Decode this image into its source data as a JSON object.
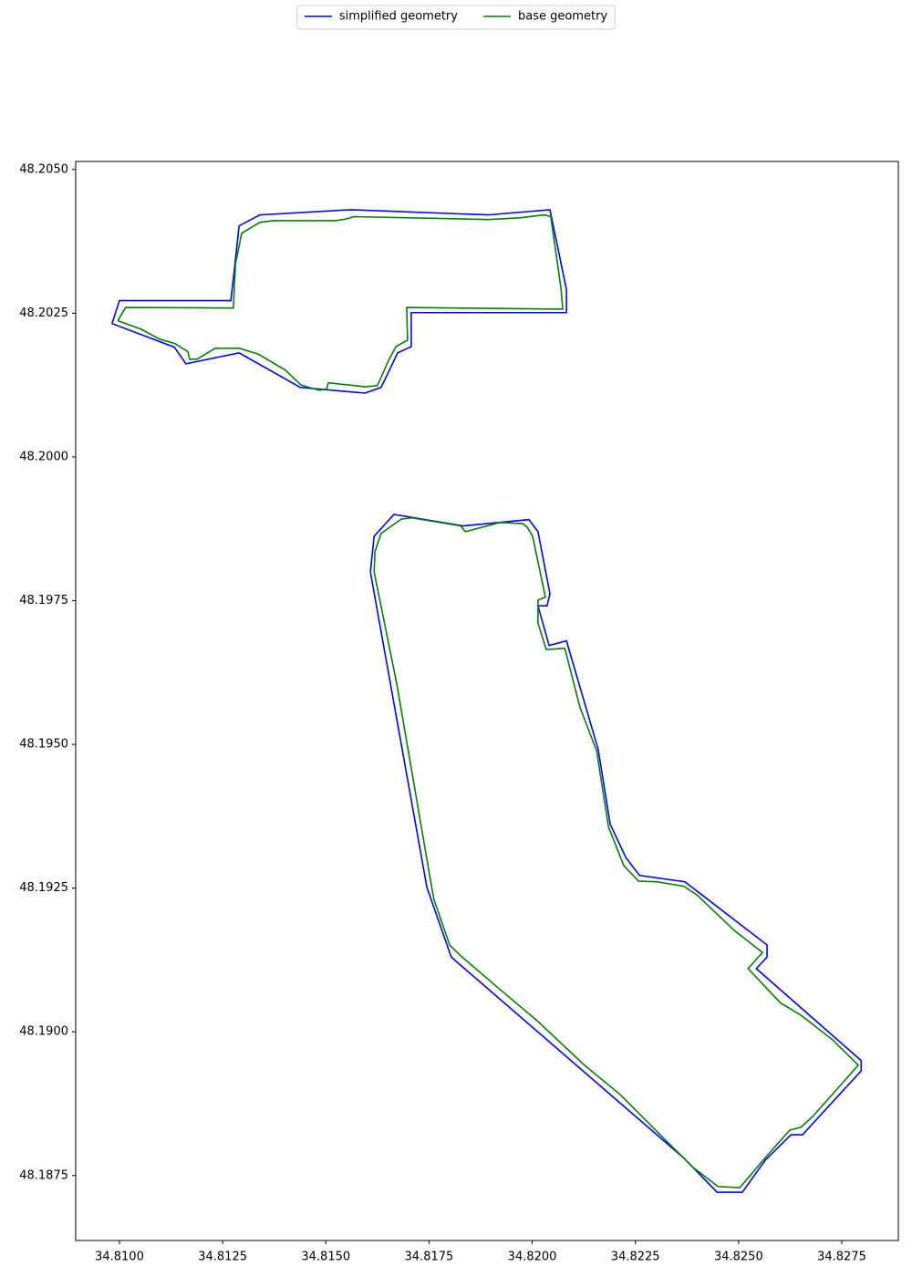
{
  "chart_data": {
    "type": "line",
    "xlim": [
      34.80894,
      34.82887
    ],
    "ylim": [
      48.18637,
      48.20514
    ],
    "xticks": [
      {
        "value": 34.81,
        "label": "34.8100"
      },
      {
        "value": 34.8125,
        "label": "34.8125"
      },
      {
        "value": 34.815,
        "label": "34.8150"
      },
      {
        "value": 34.8175,
        "label": "34.8175"
      },
      {
        "value": 34.82,
        "label": "34.8200"
      },
      {
        "value": 34.8225,
        "label": "34.8225"
      },
      {
        "value": 34.825,
        "label": "34.8250"
      },
      {
        "value": 34.8275,
        "label": "34.8275"
      }
    ],
    "yticks": [
      {
        "value": 48.1875,
        "label": "48.1875"
      },
      {
        "value": 48.19,
        "label": "48.1900"
      },
      {
        "value": 48.1925,
        "label": "48.1925"
      },
      {
        "value": 48.195,
        "label": "48.1950"
      },
      {
        "value": 48.1975,
        "label": "48.1975"
      },
      {
        "value": 48.2,
        "label": "48.2000"
      },
      {
        "value": 48.2025,
        "label": "48.2025"
      },
      {
        "value": 48.205,
        "label": "48.2050"
      }
    ],
    "grid": false,
    "legend": "upper center",
    "series": [
      {
        "name": "simplified geometry",
        "color": "#0000ff",
        "x": [
          34.80982,
          34.81,
          34.8127,
          34.8129,
          34.8134,
          34.81561,
          34.81893,
          34.82043,
          34.82083,
          34.82083,
          34.81707,
          34.81707,
          34.81674,
          34.81634,
          34.81595,
          34.81484,
          34.81438,
          34.8129,
          34.81161,
          34.81133,
          34.80982,
          null,
          34.81608,
          34.81617,
          34.81665,
          34.81833,
          34.81992,
          34.82014,
          34.82043,
          34.82036,
          34.82014,
          34.82041,
          34.82083,
          34.8216,
          34.82189,
          34.82227,
          34.8226,
          34.8237,
          34.82569,
          34.82569,
          34.82543,
          34.82797,
          34.82797,
          34.82655,
          34.82627,
          34.82565,
          34.82509,
          34.82448,
          34.82368,
          34.81804,
          34.81745,
          34.81608
        ],
        "values": [
          48.20232,
          48.20272,
          48.20272,
          48.20402,
          48.20421,
          48.2043,
          48.20421,
          48.2043,
          48.20291,
          48.20251,
          48.20251,
          48.20192,
          48.20181,
          48.20121,
          48.20111,
          48.20118,
          48.20121,
          48.20181,
          48.20162,
          48.20191,
          48.20232,
          null,
          48.198,
          48.19862,
          48.199,
          48.1988,
          48.19891,
          48.1987,
          48.19762,
          48.19741,
          48.19741,
          48.19672,
          48.1968,
          48.19491,
          48.19361,
          48.19303,
          48.19272,
          48.19261,
          48.19151,
          48.1913,
          48.1911,
          48.1895,
          48.18932,
          48.18821,
          48.18821,
          48.18777,
          48.18721,
          48.18721,
          48.1878,
          48.1913,
          48.19251,
          48.198
        ]
      },
      {
        "name": "base geometry",
        "color": "#008000",
        "x": [
          34.80996,
          34.81015,
          34.81276,
          34.81281,
          34.81296,
          34.8134,
          34.81373,
          34.81524,
          34.8155,
          34.81568,
          34.81893,
          34.8197,
          34.8203,
          34.82045,
          34.8207,
          34.82074,
          34.81696,
          34.81698,
          34.8167,
          34.81652,
          34.81625,
          34.81595,
          34.81506,
          34.81502,
          34.81484,
          34.8144,
          34.81402,
          34.81336,
          34.8129,
          34.81232,
          34.81188,
          34.8117,
          34.81166,
          34.81135,
          34.81097,
          34.81053,
          34.80996,
          null,
          34.81617,
          34.81619,
          34.81634,
          34.81683,
          34.81709,
          34.81827,
          34.81838,
          34.81922,
          34.81977,
          34.81988,
          34.82001,
          34.82032,
          34.82014,
          34.82014,
          34.82034,
          34.82079,
          34.82116,
          34.82156,
          34.82185,
          34.82222,
          34.82258,
          34.82302,
          34.82368,
          34.82401,
          34.8249,
          34.82558,
          34.82523,
          34.82602,
          34.82651,
          34.82728,
          34.8279,
          34.8268,
          34.82651,
          34.82624,
          34.82567,
          34.82503,
          34.8245,
          34.8239,
          34.82324,
          34.82213,
          34.82125,
          34.82014,
          34.81915,
          34.81827,
          34.818,
          34.81762,
          34.81754,
          34.81672,
          34.81617
        ],
        "values": [
          48.20237,
          48.2026,
          48.20259,
          48.20335,
          48.20389,
          48.20408,
          48.20411,
          48.20411,
          48.20414,
          48.20418,
          48.20413,
          48.20416,
          48.20421,
          48.20418,
          48.20292,
          48.20257,
          48.2026,
          48.20203,
          48.20192,
          48.20168,
          48.20124,
          48.20122,
          48.20129,
          48.20118,
          48.20116,
          48.20125,
          48.20151,
          48.20179,
          48.20189,
          48.20189,
          48.2017,
          48.2017,
          48.20183,
          48.20197,
          48.20205,
          48.20222,
          48.20237,
          null,
          48.198,
          48.19835,
          48.19867,
          48.19892,
          48.19894,
          48.1988,
          48.1987,
          48.19886,
          48.19884,
          48.19878,
          48.19862,
          48.19756,
          48.19751,
          48.19711,
          48.19665,
          48.19667,
          48.19564,
          48.19489,
          48.19356,
          48.19289,
          48.19262,
          48.19261,
          48.19253,
          48.19237,
          48.19176,
          48.19138,
          48.1911,
          48.1905,
          48.19029,
          48.18986,
          48.18942,
          48.18853,
          48.18834,
          48.18829,
          48.18783,
          48.18729,
          48.18731,
          48.18764,
          48.18811,
          48.18891,
          48.18943,
          48.19018,
          48.19078,
          48.19132,
          48.19151,
          48.1923,
          48.19262,
          48.19605,
          48.198
        ]
      }
    ]
  }
}
